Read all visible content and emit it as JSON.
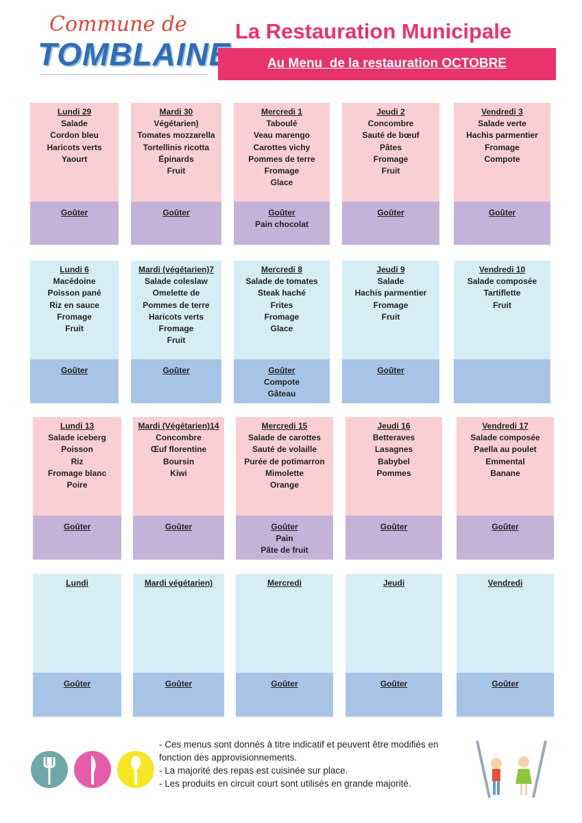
{
  "header": {
    "logo_top": "Commune de",
    "logo_main": "TOMBLAINE",
    "title": "La Restauration Municipale",
    "subtitle": "Au Menu  de la restauration OCTOBRE"
  },
  "weeks": [
    {
      "days": [
        {
          "day": "Lundi 29",
          "items": [
            "Salade",
            "Cordon bleu",
            "Haricots verts",
            "Yaourt"
          ],
          "gouter": "Goûter"
        },
        {
          "day": "Mardi  30",
          "items": [
            "Végétarien)",
            "Tomates mozzarella",
            "Tortellinis ricotta",
            "Épinards",
            "Fruit"
          ],
          "gouter": "Goûter"
        },
        {
          "day": "Mercredi 1",
          "items": [
            "Taboulé",
            "Veau marengo",
            "Carottes vichy",
            "Pommes de terre",
            "Fromage",
            "Glace"
          ],
          "gouter": "Goûter",
          "gouter_items": [
            "Pain chocolat"
          ]
        },
        {
          "day": "Jeudi 2",
          "items": [
            "Concombre",
            "Sauté de bœuf",
            "Pâtes",
            "Fromage",
            "Fruit"
          ],
          "gouter": "Goûter"
        },
        {
          "day": "Vendredi 3",
          "items": [
            "Salade verte",
            "Hachis parmentier",
            "Fromage",
            "Compote"
          ],
          "gouter": "Goûter"
        }
      ]
    },
    {
      "days": [
        {
          "day": "Lundi 6",
          "items": [
            "Macédoine",
            "Poisson pané",
            "Riz en sauce",
            "Fromage",
            "Fruit"
          ],
          "gouter": "Goûter"
        },
        {
          "day": "Mardi  (végétarien)7",
          "items": [
            "Salade coleslaw",
            "Omelette de",
            "Pommes de terre",
            "Haricots verts",
            "Fromage",
            "Fruit"
          ],
          "gouter": "Goûter"
        },
        {
          "day": "Mercredi 8",
          "items": [
            "Salade de tomates",
            "Steak haché",
            "Frites",
            "Fromage",
            "Glace"
          ],
          "gouter": "Goûter",
          "gouter_items": [
            "Compote",
            "Gâteau"
          ]
        },
        {
          "day": "Jeudi 9",
          "items": [
            "Salade",
            "Hachis parmentier",
            "Fromage",
            "Fruit"
          ],
          "gouter": "Goûter"
        },
        {
          "day": "Vendredi 10",
          "items": [
            "Salade composée",
            "Tartiflette",
            "Fruit"
          ]
        }
      ]
    },
    {
      "days": [
        {
          "day": "Lundi 13",
          "items": [
            "Salade iceberg",
            "Poisson",
            "Riz",
            "Fromage blanc",
            "Poire"
          ],
          "gouter": "Goûter"
        },
        {
          "day": "Mardi (Végétarien)14",
          "items": [
            "Concombre",
            "Œuf florentine",
            "Boursin",
            "Kiwi"
          ],
          "gouter": "Goûter"
        },
        {
          "day": "Mercredi 15",
          "items": [
            "Salade de carottes",
            "Sauté de volaille",
            "Purée de potimarron",
            "Mimolette",
            "Orange"
          ],
          "gouter": "Goûter",
          "gouter_items": [
            "Pain",
            "Pâte de fruit"
          ]
        },
        {
          "day": "Jeudi 16",
          "items": [
            "Betteraves",
            "Lasagnes",
            "Babybel",
            "Pommes"
          ],
          "gouter": "Goûter"
        },
        {
          "day": "Vendredi 17",
          "items": [
            "Salade composée",
            "Paella au poulet",
            "Emmental",
            "Banane"
          ],
          "gouter": "Goûter"
        }
      ]
    },
    {
      "days": [
        {
          "day": "Lundi",
          "items": [],
          "gouter": "Goûter"
        },
        {
          "day": "Mardi  végétarien)",
          "items": [],
          "gouter": "Goûter"
        },
        {
          "day": "Mercredi",
          "items": [],
          "gouter": "Goûter"
        },
        {
          "day": "Jeudi",
          "items": [],
          "gouter": "Goûter"
        },
        {
          "day": "Vendredi",
          "items": [],
          "gouter": "Goûter"
        }
      ]
    }
  ],
  "notes": [
    "- Ces menus sont donnés à titre indicatif et peuvent être modifiés en fonction des approvisionnements.",
    "- La majorité des repas est cuisinée sur place.",
    "- Les produits en circuit court sont utilisés en grande majorité."
  ]
}
